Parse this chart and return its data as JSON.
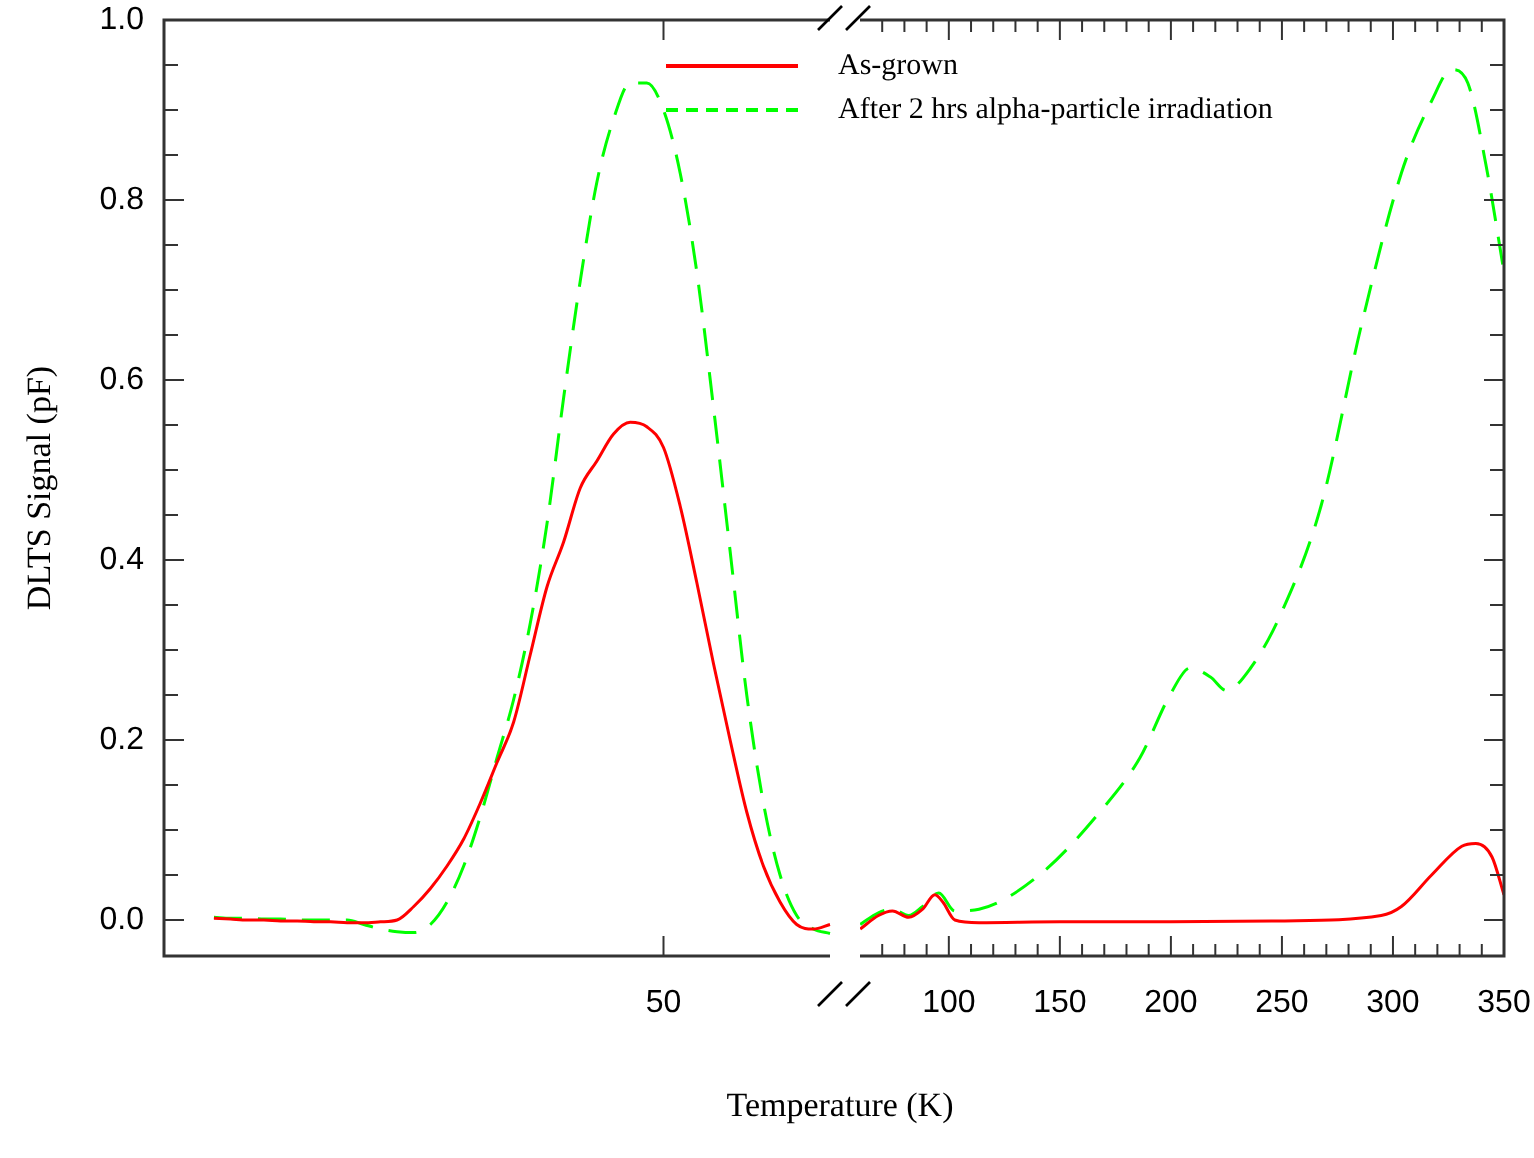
{
  "chart_data": [
    {
      "type": "line",
      "xlabel": "Temperature (K)",
      "ylabel": "DLTS Signal (pF)",
      "legend": "top",
      "grid": false,
      "categories": [
        null,
        null,
        null,
        null,
        null,
        null,
        null,
        null,
        null,
        null,
        null,
        null,
        null,
        null,
        null,
        null,
        null,
        null,
        null,
        null,
        null,
        null,
        null,
        null,
        null,
        null,
        null,
        null,
        null,
        null,
        "50",
        null,
        null,
        null,
        null,
        null,
        null,
        null,
        null,
        null,
        null
      ],
      "ylim": [
        -0.04,
        1.0
      ],
      "yticks": [
        {
          "value": 0,
          "label": "0.0"
        },
        {
          "value": 0.05,
          "label": null
        },
        {
          "value": 0.1,
          "label": null
        },
        {
          "value": 0.15,
          "label": null
        },
        0.2,
        {
          "value": 0.25,
          "label": null
        },
        {
          "value": 0.3,
          "label": null
        },
        {
          "value": 0.35,
          "label": null
        },
        0.4,
        {
          "value": 0.45,
          "label": null
        },
        {
          "value": 0.5,
          "label": null
        },
        {
          "value": 0.55,
          "label": null
        },
        0.6,
        {
          "value": 0.65,
          "label": null
        },
        {
          "value": 0.7,
          "label": null
        },
        {
          "value": 0.75,
          "label": null
        },
        0.8,
        {
          "value": 0.85,
          "label": null
        },
        {
          "value": 0.9,
          "label": null
        },
        {
          "value": 0.95,
          "label": null
        },
        {
          "value": 1,
          "label": "1.0"
        }
      ],
      "series": [
        {
          "name": "As-grown",
          "color": "#ff0000",
          "line_style": "solid",
          "values": [
            null,
            null,
            null,
            0.002,
            0.001,
            0.0,
            0.0,
            -0.001,
            -0.001,
            -0.002,
            -0.002,
            -0.003,
            -0.003,
            -0.002,
            0.0,
            0.015,
            0.035,
            0.06,
            0.09,
            0.13,
            0.175,
            0.22,
            0.295,
            0.37,
            0.42,
            0.48,
            0.51,
            0.54,
            0.553,
            0.548,
            0.525,
            0.46,
            0.375,
            0.285,
            0.2,
            0.12,
            0.06,
            0.02,
            -0.005,
            -0.01,
            -0.005
          ]
        },
        {
          "name": "After 2 hrs alpha-particle irradiation",
          "color": "#00ff00",
          "line_style": "dashed",
          "values": [
            null,
            null,
            null,
            0.003,
            0.002,
            0.002,
            0.001,
            0.001,
            0.0,
            0.0,
            0.0,
            0.0,
            -0.005,
            -0.01,
            -0.013,
            -0.014,
            -0.005,
            0.02,
            0.06,
            0.115,
            0.18,
            0.245,
            0.33,
            0.44,
            0.58,
            0.71,
            0.82,
            0.89,
            0.93,
            0.93,
            0.9,
            0.83,
            0.72,
            0.57,
            0.41,
            0.25,
            0.13,
            0.05,
            0.005,
            -0.01,
            -0.015
          ]
        }
      ]
    },
    {
      "type": "line",
      "tick_labels": "x",
      "grid": false,
      "xlim": [
        60,
        350
      ],
      "xticks": [
        {
          "value": 70,
          "label": null
        },
        {
          "value": 80,
          "label": null
        },
        {
          "value": 90,
          "label": null
        },
        100,
        {
          "value": 110,
          "label": null
        },
        {
          "value": 120,
          "label": null
        },
        {
          "value": 130,
          "label": null
        },
        {
          "value": 140,
          "label": null
        },
        150,
        {
          "value": 160,
          "label": null
        },
        {
          "value": 170,
          "label": null
        },
        {
          "value": 180,
          "label": null
        },
        {
          "value": 190,
          "label": null
        },
        200,
        {
          "value": 210,
          "label": null
        },
        {
          "value": 220,
          "label": null
        },
        {
          "value": 230,
          "label": null
        },
        {
          "value": 240,
          "label": null
        },
        250,
        {
          "value": 260,
          "label": null
        },
        {
          "value": 270,
          "label": null
        },
        {
          "value": 280,
          "label": null
        },
        {
          "value": 290,
          "label": null
        },
        300,
        {
          "value": 310,
          "label": null
        },
        {
          "value": 320,
          "label": null
        },
        {
          "value": 330,
          "label": null
        },
        {
          "value": 340,
          "label": null
        },
        350
      ],
      "ylim": [
        -0.04,
        1.0
      ],
      "yticks": [
        0.0,
        {
          "value": 0.05,
          "label": null
        },
        {
          "value": 0.1,
          "label": null
        },
        {
          "value": 0.15,
          "label": null
        },
        0.2,
        {
          "value": 0.25,
          "label": null
        },
        {
          "value": 0.3,
          "label": null
        },
        {
          "value": 0.35,
          "label": null
        },
        0.4,
        {
          "value": 0.45,
          "label": null
        },
        {
          "value": 0.5,
          "label": null
        },
        {
          "value": 0.55,
          "label": null
        },
        0.6,
        {
          "value": 0.65,
          "label": null
        },
        {
          "value": 0.7,
          "label": null
        },
        {
          "value": 0.75,
          "label": null
        },
        0.8,
        {
          "value": 0.85,
          "label": null
        },
        {
          "value": 0.9,
          "label": null
        },
        {
          "value": 0.95,
          "label": null
        },
        1.0
      ],
      "series": [
        {
          "color": "#ff0000",
          "line_style": "solid",
          "x": [
            60.1,
            68.3,
            74.6,
            81.9,
            88.2,
            93.7,
            97.3,
            102.7,
            113.6,
            150,
            200,
            250,
            294.7,
            303.8,
            317.4,
            331,
            337.3,
            344.6,
            350
          ],
          "values": [
            -0.01,
            0.005,
            0.01,
            0.003,
            0.012,
            0.028,
            0.02,
            0.0,
            -0.003,
            -0.002,
            -0.002,
            -0.001,
            0.005,
            0.015,
            0.05,
            0.082,
            0.085,
            0.07,
            0.028
          ]
        },
        {
          "color": "#00ff00",
          "line_style": "dashed",
          "x": [
            60.1,
            68.3,
            74.6,
            81.9,
            88.2,
            95.5,
            102.7,
            113.6,
            140.8,
            168,
            186,
            199.6,
            208.7,
            217.8,
            225,
            235.9,
            249.5,
            267.6,
            285.7,
            303.8,
            317.4,
            326.4,
            333.7,
            341.8,
            350
          ],
          "values": [
            -0.005,
            0.008,
            0.012,
            0.005,
            0.015,
            0.03,
            0.01,
            0.012,
            0.05,
            0.12,
            0.18,
            0.25,
            0.28,
            0.27,
            0.255,
            0.28,
            0.34,
            0.46,
            0.66,
            0.83,
            0.91,
            0.945,
            0.93,
            0.84,
            0.72
          ]
        }
      ]
    }
  ]
}
